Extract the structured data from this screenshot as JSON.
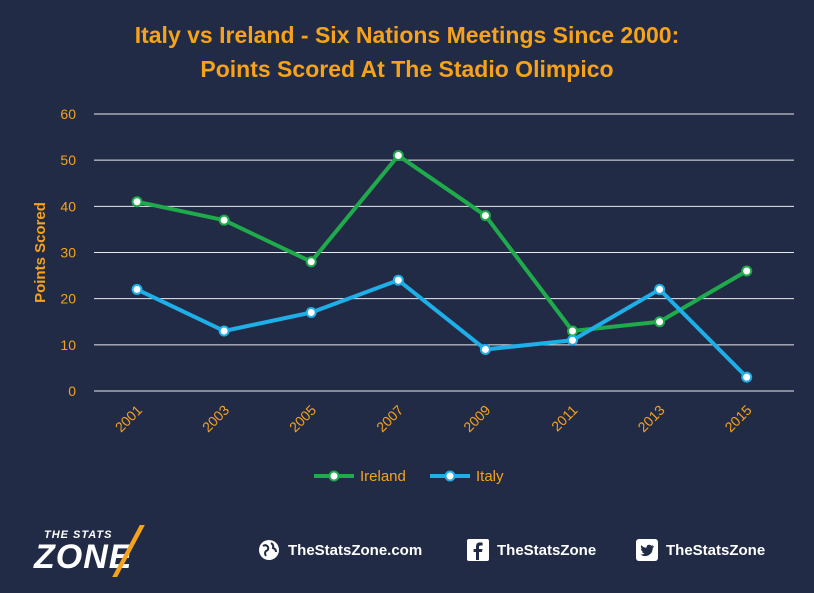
{
  "title_line1": "Italy vs Ireland - Six Nations Meetings Since 2000:",
  "title_line2": "Points Scored At The Stadio Olimpico",
  "chart_data": {
    "type": "line",
    "categories": [
      "2001",
      "2003",
      "2005",
      "2007",
      "2009",
      "2011",
      "2013",
      "2015"
    ],
    "series": [
      {
        "name": "Ireland",
        "values": [
          41,
          37,
          28,
          51,
          38,
          13,
          15,
          26
        ],
        "color": "#1faa4b"
      },
      {
        "name": "Italy",
        "values": [
          22,
          13,
          17,
          24,
          9,
          11,
          22,
          3
        ],
        "color": "#1eaee8"
      }
    ],
    "ylabel": "Points Scored",
    "xlabel": "",
    "ylim": [
      0,
      60
    ],
    "yticks": [
      0,
      10,
      20,
      30,
      40,
      50,
      60
    ],
    "grid": true,
    "legend": "bottom-center"
  },
  "footer": {
    "logo_small": "THE STATS",
    "logo_big": "ZONE",
    "website": "TheStatsZone.com",
    "facebook": "TheStatsZone",
    "twitter": "TheStatsZone",
    "icons": [
      "globe-icon",
      "facebook-icon",
      "twitter-icon"
    ]
  },
  "colors": {
    "background": "#222b45",
    "accent": "#f7a21b",
    "grid": "#ffffff"
  }
}
